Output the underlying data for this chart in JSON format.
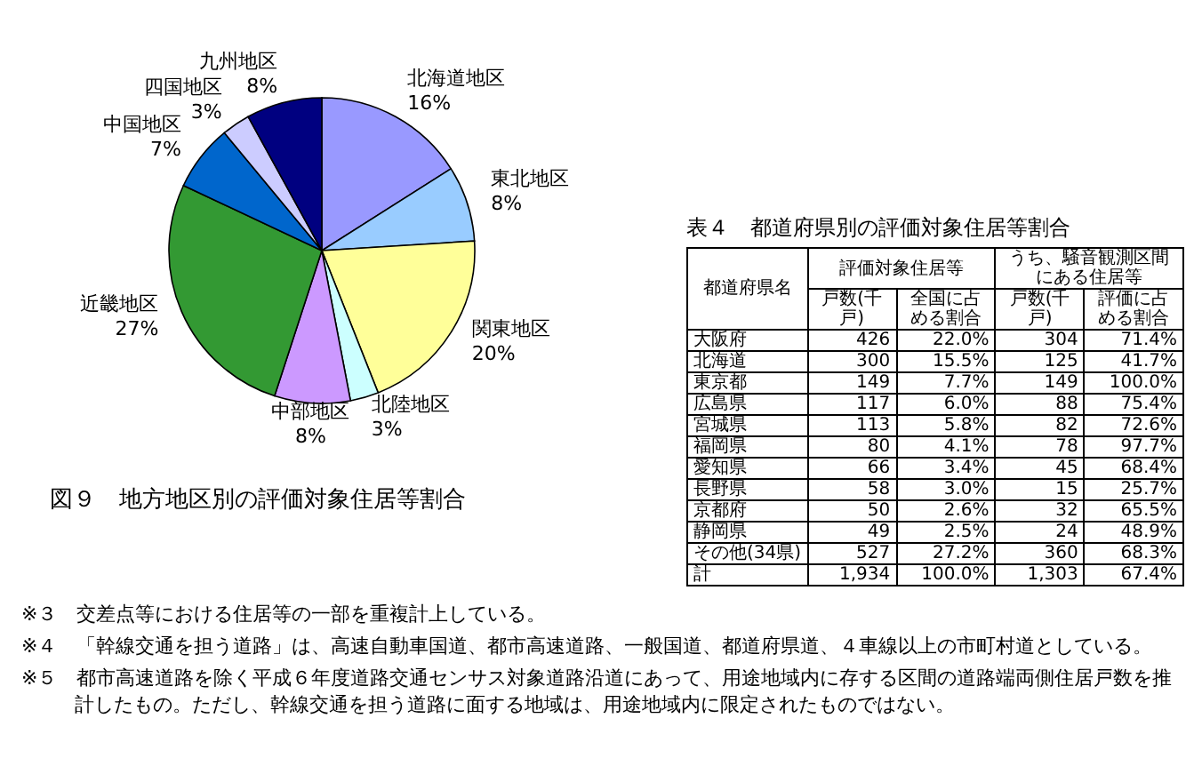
{
  "chart_data": [
    {
      "type": "pie",
      "title": "図９　地方地区別の評価対象住居等割合",
      "categories": [
        "北海道地区",
        "東北地区",
        "関東地区",
        "北陸地区",
        "中部地区",
        "近畿地区",
        "中国地区",
        "四国地区",
        "九州地区"
      ],
      "values": [
        16,
        8,
        20,
        3,
        8,
        27,
        7,
        3,
        8
      ],
      "value_labels": [
        "16%",
        "8%",
        "20%",
        "3%",
        "8%",
        "27%",
        "7%",
        "3%",
        "8%"
      ],
      "colors": [
        "#9999ff",
        "#99ccff",
        "#ffff99",
        "#ccffff",
        "#cc99ff",
        "#339933",
        "#0066cc",
        "#ccccff",
        "#000080"
      ],
      "legend": false,
      "annotations": [
        "※３　交差点等における住居等の一部を重複計上している。",
        "※４　「幹線交通を担う道路」は、高速自動車国道、都市高速道路、一般国道、都道府県道、４車線以上の市町村道としている。",
        "※５　都市高速道路を除く平成６年度道路交通センサス対象道路沿道にあって、用途地域内に存する区間の道路端両側住居戸数を推計したもの。ただし、幹線交通を担う道路に面する地域は、用途地域内に限定されたものではない。"
      ]
    },
    {
      "type": "other",
      "title": "表４　都道府県別の評価対象住居等割合",
      "xlabel": "都道府県名",
      "annotations": [
        "評価対象住居等",
        "うち、騒音観測区間にある住居等"
      ],
      "categories": [
        "大阪府",
        "北海道",
        "東京都",
        "広島県",
        "宮城県",
        "福岡県",
        "愛知県",
        "長野県",
        "京都府",
        "静岡県",
        "その他(34県)",
        "計"
      ],
      "series": [
        {
          "name": "戸数(千戸)",
          "values": [
            426,
            300,
            149,
            117,
            113,
            80,
            66,
            58,
            50,
            49,
            527,
            1934
          ],
          "value_labels": [
            "426",
            "300",
            "149",
            "117",
            "113",
            "80",
            "66",
            "58",
            "50",
            "49",
            "527",
            "1,934"
          ]
        },
        {
          "name": "全国に占める割合",
          "values": [
            22.0,
            15.5,
            7.7,
            6.0,
            5.8,
            4.1,
            3.4,
            3.0,
            2.6,
            2.5,
            27.2,
            100.0
          ],
          "value_labels": [
            "22.0%",
            "15.5%",
            "7.7%",
            "6.0%",
            "5.8%",
            "4.1%",
            "3.4%",
            "3.0%",
            "2.6%",
            "2.5%",
            "27.2%",
            "100.0%"
          ]
        },
        {
          "name": "戸数(千戸)",
          "values": [
            304,
            125,
            149,
            88,
            82,
            78,
            45,
            15,
            32,
            24,
            360,
            1303
          ],
          "value_labels": [
            "304",
            "125",
            "149",
            "88",
            "82",
            "78",
            "45",
            "15",
            "32",
            "24",
            "360",
            "1,303"
          ]
        },
        {
          "name": "評価に占める割合",
          "values": [
            71.4,
            41.7,
            100.0,
            75.4,
            72.6,
            97.7,
            68.4,
            25.7,
            65.5,
            48.9,
            68.3,
            67.4
          ],
          "value_labels": [
            "71.4%",
            "41.7%",
            "100.0%",
            "75.4%",
            "72.6%",
            "97.7%",
            "68.4%",
            "25.7%",
            "65.5%",
            "48.9%",
            "68.3%",
            "67.4%"
          ]
        }
      ]
    }
  ]
}
